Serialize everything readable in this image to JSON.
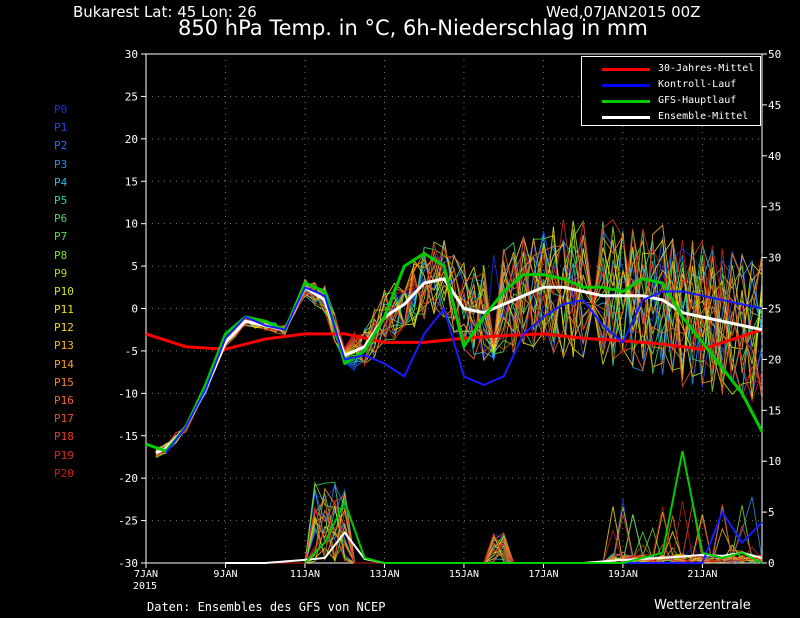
{
  "header": {
    "location": "Bukarest   Lat: 45  Lon: 26",
    "date": "Wed,07JAN2015 00Z",
    "title": "850 hPa Temp. in °C, 6h-Niederschlag in mm"
  },
  "footer": {
    "source": "Daten: Ensembles des GFS von NCEP",
    "brand": "Wetterzentrale"
  },
  "members": [
    {
      "label": "P0",
      "color": "#1f2de0"
    },
    {
      "label": "P1",
      "color": "#1f4de8"
    },
    {
      "label": "P2",
      "color": "#2a6cf0"
    },
    {
      "label": "P3",
      "color": "#2f8cf0"
    },
    {
      "label": "P4",
      "color": "#2ab8e8"
    },
    {
      "label": "P5",
      "color": "#30d0b0"
    },
    {
      "label": "P6",
      "color": "#40d870"
    },
    {
      "label": "P7",
      "color": "#4ee048"
    },
    {
      "label": "P8",
      "color": "#78e030"
    },
    {
      "label": "P9",
      "color": "#9ee020"
    },
    {
      "label": "P10",
      "color": "#c8e418"
    },
    {
      "label": "P11",
      "color": "#eee818"
    },
    {
      "label": "P12",
      "color": "#f6d418"
    },
    {
      "label": "P13",
      "color": "#f8b818"
    },
    {
      "label": "P14",
      "color": "#f89c20"
    },
    {
      "label": "P15",
      "color": "#f88028"
    },
    {
      "label": "P16",
      "color": "#f06830"
    },
    {
      "label": "P17",
      "color": "#e85030"
    },
    {
      "label": "P18",
      "color": "#e03a28"
    },
    {
      "label": "P19",
      "color": "#d82820"
    },
    {
      "label": "P20",
      "color": "#c81c18"
    }
  ],
  "chart_data": {
    "type": "line",
    "xlabel": "",
    "ylabel": "",
    "x_ticks": [
      "7JAN\n2015",
      "9JAN",
      "11JAN",
      "13JAN",
      "15JAN",
      "17JAN",
      "19JAN",
      "21JAN"
    ],
    "x_tick_days": [
      0,
      2,
      4,
      6,
      8,
      10,
      12,
      14
    ],
    "xlim_days": [
      0,
      15.5
    ],
    "y_left": {
      "ticks": [
        30,
        25,
        20,
        15,
        10,
        5,
        0,
        -5,
        -10,
        -15,
        -20,
        -25,
        -30
      ],
      "ylim": [
        -30,
        30
      ],
      "unit": "°C"
    },
    "y_right": {
      "ticks": [
        50,
        45,
        40,
        35,
        30,
        25,
        20,
        15,
        10,
        5,
        0
      ],
      "ylim": [
        0,
        50
      ],
      "unit": "mm"
    },
    "grid": true,
    "legend_position": "top-right",
    "legend": [
      {
        "name": "30-Jahres-Mittel",
        "color": "#ff0000"
      },
      {
        "name": "Kontroll-Lauf",
        "color": "#0000ff"
      },
      {
        "name": "GFS-Hauptlauf",
        "color": "#00cc00"
      },
      {
        "name": "Ensemble-Mittel",
        "color": "#ffffff"
      }
    ],
    "series": [
      {
        "name": "30-Jahres-Mittel",
        "color": "#ff0000",
        "width": 3,
        "x": [
          0,
          1,
          2,
          3,
          4,
          5,
          6,
          7,
          8,
          9,
          10,
          11,
          12,
          13,
          14,
          15.5
        ],
        "y": [
          -3,
          -4.5,
          -4.8,
          -3.6,
          -3,
          -3,
          -4,
          -4,
          -3.5,
          -3.2,
          -3,
          -3.5,
          -3.8,
          -4.2,
          -4.8,
          -2.5
        ]
      },
      {
        "name": "Ensemble-Mittel",
        "color": "#ffffff",
        "width": 3,
        "x": [
          0.25,
          0.5,
          1,
          1.5,
          2,
          2.5,
          3,
          3.5,
          4,
          4.5,
          5,
          5.5,
          6,
          6.5,
          7,
          7.5,
          8,
          8.5,
          9,
          9.5,
          10,
          10.5,
          11,
          11.5,
          12,
          12.5,
          13,
          13.5,
          14,
          14.5,
          15,
          15.5
        ],
        "y": [
          -17,
          -16.5,
          -14,
          -9.5,
          -4,
          -1.5,
          -2,
          -2.5,
          2.5,
          1,
          -5.5,
          -4.5,
          -1,
          0.5,
          3,
          3.5,
          0,
          -0.5,
          0.5,
          1.5,
          2.5,
          2.5,
          2,
          1.5,
          1.5,
          1.5,
          1,
          -0.5,
          -1,
          -1.5,
          -2,
          -2.5
        ]
      },
      {
        "name": "GFS-Hauptlauf",
        "color": "#00cc00",
        "width": 3,
        "x": [
          0,
          0.5,
          1,
          1.5,
          2,
          2.5,
          3,
          3.5,
          4,
          4.5,
          5,
          5.5,
          6,
          6.5,
          7,
          7.5,
          8,
          8.5,
          9,
          9.5,
          10,
          10.5,
          11,
          11.5,
          12,
          12.5,
          13,
          13.5,
          14,
          14.5,
          15,
          15.5
        ],
        "y": [
          -16,
          -16.8,
          -14,
          -9,
          -3,
          -1,
          -1.5,
          -2.5,
          3,
          2,
          -6.5,
          -5,
          -1,
          5,
          6.5,
          5,
          -4.5,
          -1,
          2,
          4,
          4,
          3.5,
          2.5,
          2.5,
          2,
          3.5,
          3,
          -1,
          -4,
          -7,
          -10,
          -14.5
        ]
      },
      {
        "name": "Kontroll-Lauf",
        "color": "#1a1aff",
        "width": 2,
        "x": [
          0.5,
          1,
          1.5,
          2,
          2.5,
          3,
          3.5,
          4,
          4.5,
          5,
          5.5,
          6,
          6.5,
          7,
          7.5,
          8,
          8.5,
          9,
          9.5,
          10,
          10.5,
          11,
          11.5,
          12,
          12.5,
          13,
          13.5,
          14,
          14.5,
          15,
          15.5
        ],
        "y": [
          -17,
          -14,
          -9.5,
          -3.5,
          -1,
          -2,
          -2.5,
          2.5,
          1.5,
          -6,
          -5.5,
          -6.5,
          -8,
          -3,
          0,
          -8,
          -9,
          -8,
          -3,
          -1,
          0.5,
          1,
          -2,
          -4,
          1,
          2,
          2,
          1.5,
          1,
          0.5,
          0
        ]
      }
    ],
    "precip_series": [
      {
        "name": "Ensemble-Mittel",
        "color": "#ffffff",
        "x": [
          2,
          3,
          4,
          4.5,
          5,
          5.5,
          6,
          7,
          8,
          9,
          10,
          11,
          12,
          13,
          14,
          14.5,
          15,
          15.5
        ],
        "y": [
          0,
          0,
          0.3,
          0.5,
          3,
          0.4,
          0,
          0,
          0,
          0,
          0,
          0,
          0.3,
          0.5,
          0.8,
          0.7,
          1,
          0.5
        ]
      },
      {
        "name": "Kontroll-Lauf",
        "color": "#1a1aff",
        "x": [
          12,
          13,
          14,
          14.5,
          15,
          15.5
        ],
        "y": [
          0,
          0,
          0,
          5,
          2,
          4
        ]
      },
      {
        "name": "GFS-Hauptlauf",
        "color": "#00cc00",
        "x": [
          4,
          4.5,
          5,
          5.5,
          6,
          12,
          13,
          13.5,
          14,
          14.5,
          15,
          15.5
        ],
        "y": [
          0,
          2,
          6,
          0.5,
          0,
          0,
          1,
          11,
          1,
          0.5,
          1,
          0
        ]
      }
    ]
  }
}
